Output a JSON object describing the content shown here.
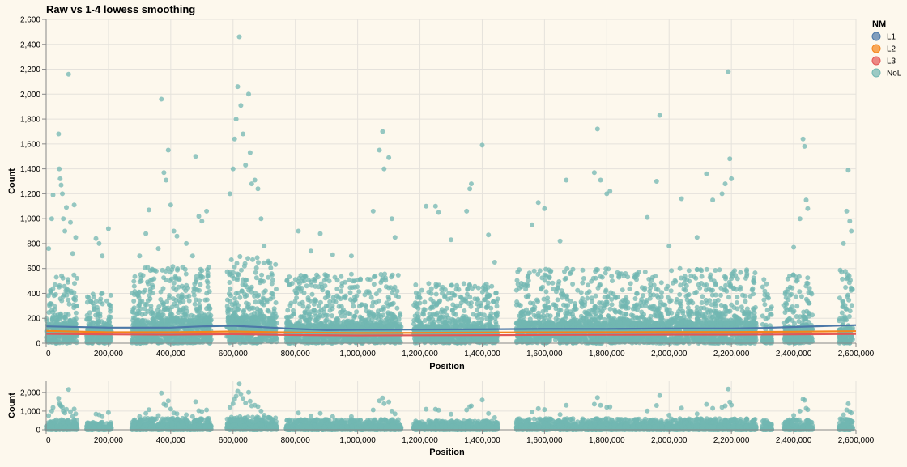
{
  "colors": {
    "background": "#fdf8ed",
    "grid": "#e5e2dc",
    "axis": "#888888",
    "text": "#000000",
    "L1": "#4c78a8",
    "L2": "#f58518",
    "L3": "#e45756",
    "NoL": "#72b7b2"
  },
  "chart_data": [
    {
      "id": "main",
      "type": "scatter",
      "title": "Raw vs 1-4 lowess smoothing",
      "xlabel": "Position",
      "ylabel": "Count",
      "xlim": [
        0,
        2600000
      ],
      "ylim": [
        0,
        2600
      ],
      "grid": true,
      "x_ticks": [
        0,
        200000,
        400000,
        600000,
        800000,
        1000000,
        1200000,
        1400000,
        1600000,
        1800000,
        2000000,
        2200000,
        2400000,
        2600000
      ],
      "x_tick_labels": [
        "0",
        "200,000",
        "400,000",
        "600,000",
        "800,000",
        "1,000,000",
        "1,200,000",
        "1,400,000",
        "1,600,000",
        "1,800,000",
        "2,000,000",
        "2,200,000",
        "2,400,000",
        "2,600,000"
      ],
      "y_ticks": [
        0,
        200,
        400,
        600,
        800,
        1000,
        1200,
        1400,
        1600,
        1800,
        2000,
        2200,
        2400,
        2600
      ],
      "y_tick_labels": [
        "0",
        "200",
        "400",
        "600",
        "800",
        "1,000",
        "1,200",
        "1,400",
        "1,600",
        "1,800",
        "2,000",
        "2,200",
        "2,400",
        "2,600"
      ],
      "legend": {
        "title": "NM",
        "position": "top-right",
        "entries": [
          {
            "label": "L1",
            "color": "#4c78a8"
          },
          {
            "label": "L2",
            "color": "#f58518"
          },
          {
            "label": "L3",
            "color": "#e45756"
          },
          {
            "label": "NoL",
            "color": "#72b7b2"
          }
        ]
      },
      "lines": [
        {
          "name": "L1",
          "color": "#4c78a8",
          "points": [
            [
              0,
              135
            ],
            [
              200000,
              125
            ],
            [
              400000,
              125
            ],
            [
              500000,
              135
            ],
            [
              600000,
              140
            ],
            [
              700000,
              128
            ],
            [
              800000,
              115
            ],
            [
              900000,
              105
            ],
            [
              1000000,
              108
            ],
            [
              1200000,
              110
            ],
            [
              1400000,
              112
            ],
            [
              1600000,
              115
            ],
            [
              1800000,
              115
            ],
            [
              2000000,
              118
            ],
            [
              2200000,
              118
            ],
            [
              2300000,
              122
            ],
            [
              2400000,
              130
            ],
            [
              2600000,
              145
            ]
          ]
        },
        {
          "name": "L2",
          "color": "#f58518",
          "points": [
            [
              0,
              98
            ],
            [
              200000,
              88
            ],
            [
              400000,
              88
            ],
            [
              600000,
              94
            ],
            [
              800000,
              86
            ],
            [
              1000000,
              82
            ],
            [
              1200000,
              83
            ],
            [
              1400000,
              85
            ],
            [
              1600000,
              87
            ],
            [
              1800000,
              88
            ],
            [
              2000000,
              90
            ],
            [
              2200000,
              90
            ],
            [
              2400000,
              92
            ],
            [
              2600000,
              96
            ]
          ]
        },
        {
          "name": "L3",
          "color": "#e45756",
          "points": [
            [
              0,
              75
            ],
            [
              200000,
              70
            ],
            [
              400000,
              68
            ],
            [
              600000,
              72
            ],
            [
              800000,
              65
            ],
            [
              1000000,
              62
            ],
            [
              1200000,
              63
            ],
            [
              1400000,
              64
            ],
            [
              1600000,
              66
            ],
            [
              1800000,
              67
            ],
            [
              2000000,
              68
            ],
            [
              2200000,
              68
            ],
            [
              2400000,
              70
            ],
            [
              2600000,
              74
            ]
          ]
        }
      ],
      "scatter": {
        "name": "NoL",
        "color": "#72b7b2",
        "density_clusters": [
          {
            "x_range": [
              0,
              100000
            ],
            "baseline": [
              0,
              150
            ],
            "core_max": 550,
            "outliers": [
              [
                8000,
                760
              ],
              [
                18000,
                1000
              ],
              [
                22000,
                1190
              ],
              [
                40000,
                1680
              ],
              [
                42000,
                1400
              ],
              [
                45000,
                1320
              ],
              [
                48000,
                1270
              ],
              [
                52000,
                1200
              ],
              [
                55000,
                1000
              ],
              [
                60000,
                900
              ],
              [
                65000,
                1090
              ],
              [
                72000,
                2160
              ],
              [
                78000,
                970
              ],
              [
                85000,
                720
              ],
              [
                90000,
                1110
              ],
              [
                95000,
                850
              ]
            ]
          },
          {
            "x_range": [
              130000,
              210000
            ],
            "baseline": [
              0,
              120
            ],
            "core_max": 420,
            "outliers": [
              [
                160000,
                840
              ],
              [
                170000,
                800
              ],
              [
                180000,
                700
              ],
              [
                200000,
                920
              ]
            ]
          },
          {
            "x_range": [
              275000,
              530000
            ],
            "baseline": [
              0,
              180
            ],
            "core_max": 620,
            "outliers": [
              [
                300000,
                700
              ],
              [
                320000,
                880
              ],
              [
                330000,
                1070
              ],
              [
                360000,
                760
              ],
              [
                370000,
                1960
              ],
              [
                378000,
                1370
              ],
              [
                385000,
                1310
              ],
              [
                392000,
                1550
              ],
              [
                400000,
                1110
              ],
              [
                410000,
                900
              ],
              [
                420000,
                860
              ],
              [
                450000,
                800
              ],
              [
                470000,
                700
              ],
              [
                480000,
                1500
              ],
              [
                490000,
                1020
              ],
              [
                500000,
                980
              ],
              [
                515000,
                1060
              ]
            ]
          },
          {
            "x_range": [
              580000,
              740000
            ],
            "baseline": [
              0,
              200
            ],
            "core_max": 700,
            "outliers": [
              [
                590000,
                1200
              ],
              [
                600000,
                1400
              ],
              [
                605000,
                1640
              ],
              [
                610000,
                1800
              ],
              [
                615000,
                2060
              ],
              [
                620000,
                2460
              ],
              [
                625000,
                1910
              ],
              [
                632000,
                1680
              ],
              [
                640000,
                1430
              ],
              [
                660000,
                1280
              ],
              [
                650000,
                2000
              ],
              [
                655000,
                1530
              ],
              [
                670000,
                1310
              ],
              [
                680000,
                1240
              ],
              [
                690000,
                1000
              ],
              [
                700000,
                780
              ]
            ]
          },
          {
            "x_range": [
              770000,
              1140000
            ],
            "baseline": [
              0,
              140
            ],
            "core_max": 560,
            "outliers": [
              [
                810000,
                900
              ],
              [
                850000,
                740
              ],
              [
                880000,
                880
              ],
              [
                920000,
                710
              ],
              [
                980000,
                700
              ],
              [
                1050000,
                1060
              ],
              [
                1070000,
                1550
              ],
              [
                1080000,
                1700
              ],
              [
                1085000,
                1400
              ],
              [
                1100000,
                1490
              ],
              [
                1110000,
                1000
              ],
              [
                1120000,
                850
              ]
            ]
          },
          {
            "x_range": [
              1180000,
              1450000
            ],
            "baseline": [
              0,
              130
            ],
            "core_max": 480,
            "outliers": [
              [
                1220000,
                1100
              ],
              [
                1250000,
                1100
              ],
              [
                1260000,
                1050
              ],
              [
                1300000,
                830
              ],
              [
                1350000,
                1060
              ],
              [
                1360000,
                1240
              ],
              [
                1365000,
                1280
              ],
              [
                1400000,
                1590
              ],
              [
                1420000,
                870
              ],
              [
                1440000,
                650
              ]
            ]
          },
          {
            "x_range": [
              1510000,
              2280000
            ],
            "baseline": [
              0,
              160
            ],
            "core_max": 600,
            "outliers": [
              [
                1560000,
                950
              ],
              [
                1580000,
                1130
              ],
              [
                1600000,
                1080
              ],
              [
                1650000,
                820
              ],
              [
                1670000,
                1310
              ],
              [
                1760000,
                1370
              ],
              [
                1770000,
                1720
              ],
              [
                1780000,
                1310
              ],
              [
                1800000,
                1200
              ],
              [
                1810000,
                1220
              ],
              [
                1930000,
                1010
              ],
              [
                1960000,
                1300
              ],
              [
                1970000,
                1830
              ],
              [
                2000000,
                780
              ],
              [
                2040000,
                1160
              ],
              [
                2090000,
                850
              ],
              [
                2120000,
                1360
              ],
              [
                2140000,
                1150
              ],
              [
                2170000,
                1200
              ],
              [
                2180000,
                1280
              ],
              [
                2190000,
                2180
              ],
              [
                2195000,
                1480
              ],
              [
                2200000,
                1320
              ]
            ]
          },
          {
            "x_range": [
              2300000,
              2330000
            ],
            "baseline": [
              0,
              60
            ],
            "core_max": 520,
            "outliers": []
          },
          {
            "x_range": [
              2370000,
              2460000
            ],
            "baseline": [
              0,
              120
            ],
            "core_max": 550,
            "outliers": [
              [
                2400000,
                770
              ],
              [
                2420000,
                1000
              ],
              [
                2430000,
                1640
              ],
              [
                2435000,
                1580
              ],
              [
                2440000,
                1150
              ],
              [
                2445000,
                1080
              ]
            ]
          },
          {
            "x_range": [
              2545000,
              2590000
            ],
            "baseline": [
              0,
              110
            ],
            "core_max": 620,
            "outliers": [
              [
                2560000,
                800
              ],
              [
                2570000,
                1060
              ],
              [
                2575000,
                1390
              ],
              [
                2580000,
                980
              ],
              [
                2585000,
                900
              ]
            ]
          }
        ]
      }
    },
    {
      "id": "overview",
      "type": "scatter",
      "title": "",
      "xlabel": "Position",
      "ylabel": "Count",
      "xlim": [
        0,
        2600000
      ],
      "ylim": [
        0,
        2600
      ],
      "grid": true,
      "x_ticks": [
        0,
        200000,
        400000,
        600000,
        800000,
        1000000,
        1200000,
        1400000,
        1600000,
        1800000,
        2000000,
        2200000,
        2400000,
        2600000
      ],
      "x_tick_labels": [
        "0",
        "200,000",
        "400,000",
        "600,000",
        "800,000",
        "1,000,000",
        "1,200,000",
        "1,400,000",
        "1,600,000",
        "1,800,000",
        "2,000,000",
        "2,200,000",
        "2,400,000",
        "2,600,000"
      ],
      "y_ticks": [
        0,
        1000,
        2000
      ],
      "y_tick_labels": [
        "0",
        "1,000",
        "2,000"
      ]
    }
  ]
}
